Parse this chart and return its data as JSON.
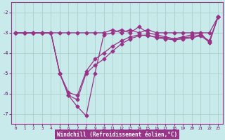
{
  "xlabel": "Windchill (Refroidissement éolien,°C)",
  "bg_color": "#c8eaea",
  "grid_color": "#a8d0c8",
  "line_color": "#993388",
  "x_ticks": [
    0,
    1,
    2,
    3,
    4,
    5,
    6,
    7,
    8,
    9,
    10,
    11,
    12,
    13,
    14,
    15,
    16,
    17,
    18,
    19,
    20,
    21,
    22,
    23
  ],
  "ylim": [
    -7.5,
    -1.5
  ],
  "yticks": [
    -7,
    -6,
    -5,
    -4,
    -3,
    -2
  ],
  "xlim": [
    -0.5,
    23.5
  ],
  "series1_x": [
    0,
    1,
    2,
    3,
    4,
    5,
    6,
    7,
    8,
    9,
    10,
    11,
    12,
    13,
    14,
    15,
    16,
    17,
    18,
    19,
    20,
    21,
    22,
    23
  ],
  "series1_y": [
    -3.0,
    -3.0,
    -3.0,
    -3.0,
    -3.0,
    -3.0,
    -3.0,
    -3.0,
    -3.0,
    -3.0,
    -3.0,
    -2.85,
    -3.0,
    -2.85,
    -3.0,
    -2.85,
    -3.0,
    -3.0,
    -3.0,
    -3.0,
    -3.0,
    -3.0,
    -3.0,
    -2.2
  ],
  "series2_x": [
    0,
    1,
    2,
    3,
    4,
    5,
    6,
    7,
    8,
    9,
    10,
    11,
    12,
    13,
    14,
    15,
    16,
    17,
    18,
    19,
    20,
    21,
    22,
    23
  ],
  "series2_y": [
    -3.0,
    -3.0,
    -3.0,
    -3.0,
    -3.0,
    -5.0,
    -6.1,
    -6.65,
    -7.1,
    -5.0,
    -3.1,
    -3.0,
    -2.85,
    -3.0,
    -2.7,
    -3.0,
    -3.1,
    -3.2,
    -3.3,
    -3.2,
    -3.1,
    -3.0,
    -3.5,
    -2.2
  ],
  "series3_x": [
    0,
    1,
    2,
    3,
    4,
    5,
    6,
    7,
    8,
    9,
    10,
    11,
    12,
    13,
    14,
    15,
    16,
    17,
    18,
    19,
    20,
    21,
    22,
    23
  ],
  "series3_y": [
    -3.0,
    -3.0,
    -3.0,
    -3.0,
    -3.0,
    -5.0,
    -6.1,
    -6.3,
    -5.0,
    -4.6,
    -4.3,
    -3.9,
    -3.55,
    -3.3,
    -3.15,
    -3.1,
    -3.25,
    -3.3,
    -3.35,
    -3.3,
    -3.25,
    -3.15,
    -3.45,
    -2.2
  ],
  "series4_x": [
    0,
    1,
    2,
    3,
    4,
    5,
    6,
    7,
    8,
    9,
    10,
    11,
    12,
    13,
    14,
    15,
    16,
    17,
    18,
    19,
    20,
    21,
    22,
    23
  ],
  "series4_y": [
    -3.0,
    -3.0,
    -3.0,
    -3.0,
    -3.0,
    -5.0,
    -5.95,
    -6.1,
    -4.9,
    -4.3,
    -4.0,
    -3.65,
    -3.4,
    -3.2,
    -3.1,
    -3.15,
    -3.2,
    -3.25,
    -3.3,
    -3.25,
    -3.2,
    -3.1,
    -3.4,
    -2.2
  ]
}
